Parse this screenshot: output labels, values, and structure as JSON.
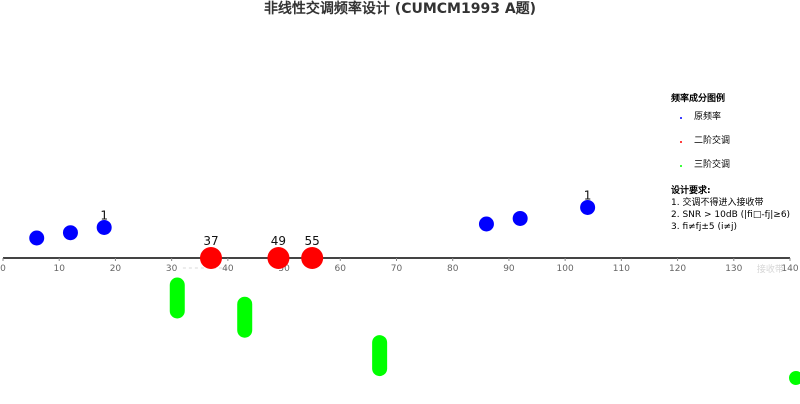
{
  "chart_data": {
    "type": "scatter",
    "title": "非线性交调频率设计 (CUMCM1993 A题)",
    "xlim": [
      0,
      140
    ],
    "x_ticks": [
      0,
      10,
      20,
      30,
      40,
      50,
      60,
      70,
      80,
      90,
      100,
      110,
      120,
      130,
      140
    ],
    "x_band_label": "接收带",
    "grid": false,
    "legend": {
      "placement": "right",
      "heading": "频率成分图例",
      "entries": [
        {
          "label": "原频率",
          "color": "#0000ff"
        },
        {
          "label": "二阶交调",
          "color": "#ff0000"
        },
        {
          "label": "三阶交调",
          "color": "#00ff00"
        }
      ]
    },
    "notes": {
      "heading": "设计要求:",
      "lines": [
        "1. 交调不得进入接收带",
        "2. SNR > 10dB (|fi□-fj|≥6)",
        "3. fi≠fj±5 (i≠j)"
      ]
    },
    "series": [
      {
        "color": "#0000ff",
        "points": [
          {
            "x": 6,
            "label": ""
          },
          {
            "x": 12,
            "label": ""
          },
          {
            "x": 18,
            "label": "1"
          },
          {
            "x": 86,
            "label": ""
          },
          {
            "x": 92,
            "label": ""
          },
          {
            "x": 104,
            "label": "1"
          }
        ]
      },
      {
        "color": "#ff0000",
        "points": [
          {
            "x": 37,
            "label": "37"
          },
          {
            "x": 49,
            "label": "49"
          },
          {
            "x": 55,
            "label": "55"
          }
        ]
      },
      {
        "color": "#00ff00",
        "points": [
          {
            "x": 31,
            "label": ""
          },
          {
            "x": 43,
            "label": ""
          },
          {
            "x": 67,
            "label": ""
          },
          {
            "x": 141,
            "label": ""
          }
        ]
      }
    ]
  }
}
